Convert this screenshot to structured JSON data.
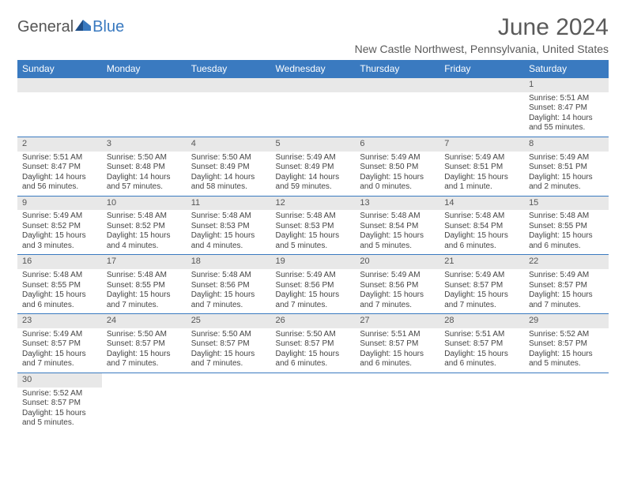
{
  "logo": {
    "text_general": "General",
    "text_blue": "Blue"
  },
  "title": "June 2024",
  "location": "New Castle Northwest, Pennsylvania, United States",
  "colors": {
    "header_bg": "#3a7ac0",
    "header_text": "#ffffff",
    "daynum_bg": "#e8e8e8",
    "border": "#3a7ac0",
    "text": "#444444"
  },
  "day_headers": [
    "Sunday",
    "Monday",
    "Tuesday",
    "Wednesday",
    "Thursday",
    "Friday",
    "Saturday"
  ],
  "weeks": [
    [
      null,
      null,
      null,
      null,
      null,
      null,
      {
        "n": "1",
        "sr": "Sunrise: 5:51 AM",
        "ss": "Sunset: 8:47 PM",
        "dl1": "Daylight: 14 hours",
        "dl2": "and 55 minutes."
      }
    ],
    [
      {
        "n": "2",
        "sr": "Sunrise: 5:51 AM",
        "ss": "Sunset: 8:47 PM",
        "dl1": "Daylight: 14 hours",
        "dl2": "and 56 minutes."
      },
      {
        "n": "3",
        "sr": "Sunrise: 5:50 AM",
        "ss": "Sunset: 8:48 PM",
        "dl1": "Daylight: 14 hours",
        "dl2": "and 57 minutes."
      },
      {
        "n": "4",
        "sr": "Sunrise: 5:50 AM",
        "ss": "Sunset: 8:49 PM",
        "dl1": "Daylight: 14 hours",
        "dl2": "and 58 minutes."
      },
      {
        "n": "5",
        "sr": "Sunrise: 5:49 AM",
        "ss": "Sunset: 8:49 PM",
        "dl1": "Daylight: 14 hours",
        "dl2": "and 59 minutes."
      },
      {
        "n": "6",
        "sr": "Sunrise: 5:49 AM",
        "ss": "Sunset: 8:50 PM",
        "dl1": "Daylight: 15 hours",
        "dl2": "and 0 minutes."
      },
      {
        "n": "7",
        "sr": "Sunrise: 5:49 AM",
        "ss": "Sunset: 8:51 PM",
        "dl1": "Daylight: 15 hours",
        "dl2": "and 1 minute."
      },
      {
        "n": "8",
        "sr": "Sunrise: 5:49 AM",
        "ss": "Sunset: 8:51 PM",
        "dl1": "Daylight: 15 hours",
        "dl2": "and 2 minutes."
      }
    ],
    [
      {
        "n": "9",
        "sr": "Sunrise: 5:49 AM",
        "ss": "Sunset: 8:52 PM",
        "dl1": "Daylight: 15 hours",
        "dl2": "and 3 minutes."
      },
      {
        "n": "10",
        "sr": "Sunrise: 5:48 AM",
        "ss": "Sunset: 8:52 PM",
        "dl1": "Daylight: 15 hours",
        "dl2": "and 4 minutes."
      },
      {
        "n": "11",
        "sr": "Sunrise: 5:48 AM",
        "ss": "Sunset: 8:53 PM",
        "dl1": "Daylight: 15 hours",
        "dl2": "and 4 minutes."
      },
      {
        "n": "12",
        "sr": "Sunrise: 5:48 AM",
        "ss": "Sunset: 8:53 PM",
        "dl1": "Daylight: 15 hours",
        "dl2": "and 5 minutes."
      },
      {
        "n": "13",
        "sr": "Sunrise: 5:48 AM",
        "ss": "Sunset: 8:54 PM",
        "dl1": "Daylight: 15 hours",
        "dl2": "and 5 minutes."
      },
      {
        "n": "14",
        "sr": "Sunrise: 5:48 AM",
        "ss": "Sunset: 8:54 PM",
        "dl1": "Daylight: 15 hours",
        "dl2": "and 6 minutes."
      },
      {
        "n": "15",
        "sr": "Sunrise: 5:48 AM",
        "ss": "Sunset: 8:55 PM",
        "dl1": "Daylight: 15 hours",
        "dl2": "and 6 minutes."
      }
    ],
    [
      {
        "n": "16",
        "sr": "Sunrise: 5:48 AM",
        "ss": "Sunset: 8:55 PM",
        "dl1": "Daylight: 15 hours",
        "dl2": "and 6 minutes."
      },
      {
        "n": "17",
        "sr": "Sunrise: 5:48 AM",
        "ss": "Sunset: 8:55 PM",
        "dl1": "Daylight: 15 hours",
        "dl2": "and 7 minutes."
      },
      {
        "n": "18",
        "sr": "Sunrise: 5:48 AM",
        "ss": "Sunset: 8:56 PM",
        "dl1": "Daylight: 15 hours",
        "dl2": "and 7 minutes."
      },
      {
        "n": "19",
        "sr": "Sunrise: 5:49 AM",
        "ss": "Sunset: 8:56 PM",
        "dl1": "Daylight: 15 hours",
        "dl2": "and 7 minutes."
      },
      {
        "n": "20",
        "sr": "Sunrise: 5:49 AM",
        "ss": "Sunset: 8:56 PM",
        "dl1": "Daylight: 15 hours",
        "dl2": "and 7 minutes."
      },
      {
        "n": "21",
        "sr": "Sunrise: 5:49 AM",
        "ss": "Sunset: 8:57 PM",
        "dl1": "Daylight: 15 hours",
        "dl2": "and 7 minutes."
      },
      {
        "n": "22",
        "sr": "Sunrise: 5:49 AM",
        "ss": "Sunset: 8:57 PM",
        "dl1": "Daylight: 15 hours",
        "dl2": "and 7 minutes."
      }
    ],
    [
      {
        "n": "23",
        "sr": "Sunrise: 5:49 AM",
        "ss": "Sunset: 8:57 PM",
        "dl1": "Daylight: 15 hours",
        "dl2": "and 7 minutes."
      },
      {
        "n": "24",
        "sr": "Sunrise: 5:50 AM",
        "ss": "Sunset: 8:57 PM",
        "dl1": "Daylight: 15 hours",
        "dl2": "and 7 minutes."
      },
      {
        "n": "25",
        "sr": "Sunrise: 5:50 AM",
        "ss": "Sunset: 8:57 PM",
        "dl1": "Daylight: 15 hours",
        "dl2": "and 7 minutes."
      },
      {
        "n": "26",
        "sr": "Sunrise: 5:50 AM",
        "ss": "Sunset: 8:57 PM",
        "dl1": "Daylight: 15 hours",
        "dl2": "and 6 minutes."
      },
      {
        "n": "27",
        "sr": "Sunrise: 5:51 AM",
        "ss": "Sunset: 8:57 PM",
        "dl1": "Daylight: 15 hours",
        "dl2": "and 6 minutes."
      },
      {
        "n": "28",
        "sr": "Sunrise: 5:51 AM",
        "ss": "Sunset: 8:57 PM",
        "dl1": "Daylight: 15 hours",
        "dl2": "and 6 minutes."
      },
      {
        "n": "29",
        "sr": "Sunrise: 5:52 AM",
        "ss": "Sunset: 8:57 PM",
        "dl1": "Daylight: 15 hours",
        "dl2": "and 5 minutes."
      }
    ],
    [
      {
        "n": "30",
        "sr": "Sunrise: 5:52 AM",
        "ss": "Sunset: 8:57 PM",
        "dl1": "Daylight: 15 hours",
        "dl2": "and 5 minutes."
      },
      null,
      null,
      null,
      null,
      null,
      null
    ]
  ]
}
